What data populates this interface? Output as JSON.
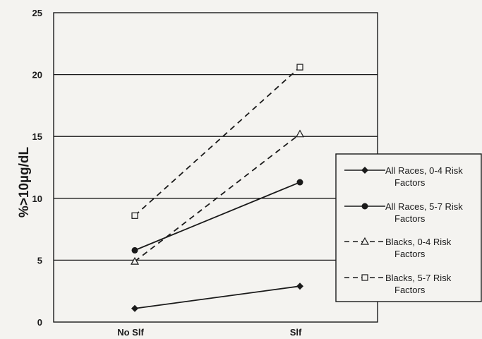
{
  "chart_data": {
    "type": "line",
    "title": "",
    "xlabel": "",
    "ylabel": "%>10µg/dL",
    "categories": [
      "No Slf",
      "Slf"
    ],
    "ylim": [
      0,
      25
    ],
    "yticks": [
      0,
      5,
      10,
      15,
      20,
      25
    ],
    "grid": "horizontal",
    "legend_position": "right",
    "series": [
      {
        "name": "All Races, 0-4 Risk Factors",
        "values": [
          1.1,
          2.9
        ],
        "marker": "diamond",
        "line": "solid"
      },
      {
        "name": "All Races, 5-7 Risk Factors",
        "values": [
          5.8,
          11.3
        ],
        "marker": "circle",
        "line": "solid"
      },
      {
        "name": "Blacks, 0-4 Risk Factors",
        "values": [
          4.9,
          15.2
        ],
        "marker": "triangle-open",
        "line": "dashed"
      },
      {
        "name": "Blacks, 5-7 Risk Factors",
        "values": [
          8.6,
          20.6
        ],
        "marker": "square-open",
        "line": "dashed"
      }
    ],
    "legend_lines": [
      [
        "All Races, 0-4 Risk",
        "Factors"
      ],
      [
        "All Races, 5-7 Risk",
        "Factors"
      ],
      [
        "Blacks, 0-4 Risk",
        "Factors"
      ],
      [
        "Blacks, 5-7 Risk",
        "Factors"
      ]
    ],
    "colors": {
      "ink": "#1a1a1a",
      "background": "#f4f3f0"
    }
  }
}
